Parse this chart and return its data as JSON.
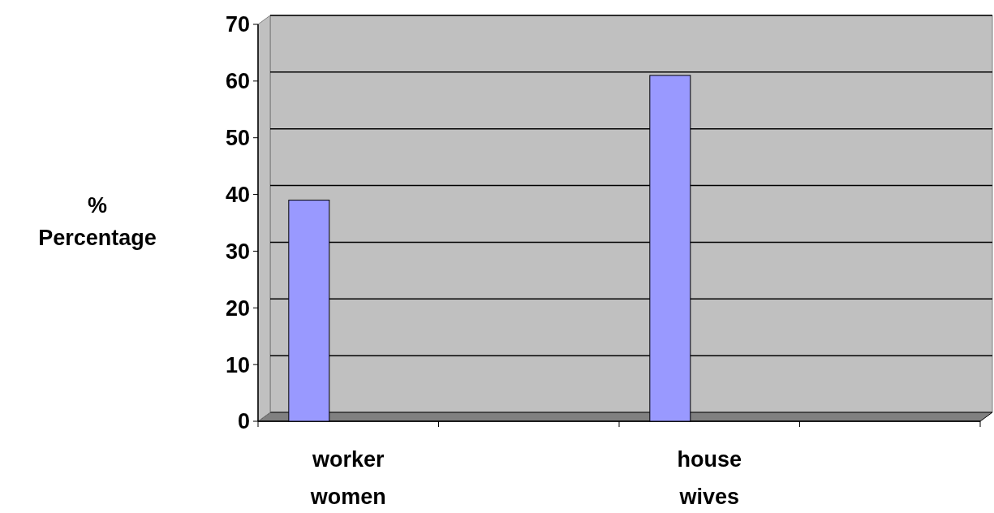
{
  "chart_data": {
    "type": "bar",
    "ylabel": "% Percentage",
    "categories": [
      "worker women",
      null,
      "house wives",
      null
    ],
    "values": [
      39,
      null,
      61,
      null
    ],
    "color": "#9999ff",
    "ylim": [
      0,
      70
    ],
    "yticks": [
      0,
      10,
      20,
      30,
      40,
      50,
      60,
      70
    ],
    "grid": "y"
  }
}
